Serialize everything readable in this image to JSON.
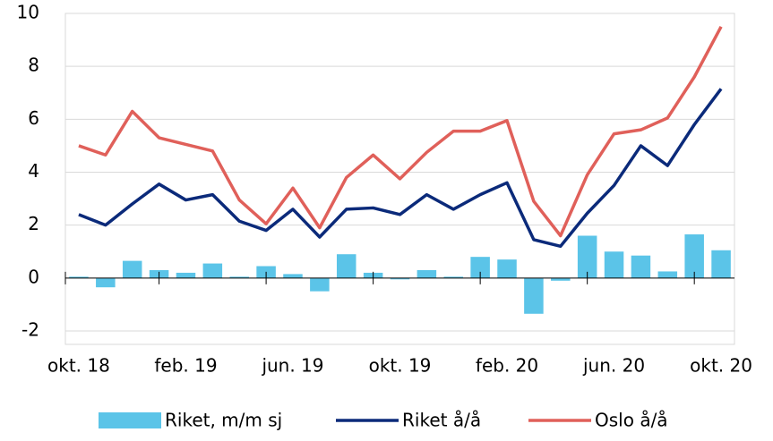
{
  "chart_data": {
    "type": "bar-line",
    "categories": [
      "okt. 18",
      null,
      null,
      null,
      "feb. 19",
      null,
      null,
      null,
      "jun. 19",
      null,
      null,
      null,
      "okt. 19",
      null,
      null,
      null,
      "feb. 20",
      null,
      null,
      null,
      "jun. 20",
      null,
      null,
      null,
      "okt. 20"
    ],
    "series": [
      {
        "name": "Riket, m/m sj",
        "type": "bar",
        "color": "#5bc4e8",
        "values": [
          0.05,
          -0.35,
          0.65,
          0.3,
          0.2,
          0.55,
          0.05,
          0.45,
          0.15,
          -0.5,
          0.9,
          0.2,
          -0.05,
          0.3,
          0.05,
          0.8,
          0.7,
          -1.35,
          -0.1,
          1.6,
          1.0,
          0.85,
          0.25,
          1.65,
          1.05
        ]
      },
      {
        "name": "Riket å/å",
        "type": "line",
        "color": "#0b2a7a",
        "values": [
          2.4,
          2.0,
          2.8,
          3.55,
          2.95,
          3.15,
          2.15,
          1.8,
          2.6,
          1.55,
          2.6,
          2.65,
          2.4,
          3.15,
          2.6,
          3.15,
          3.6,
          1.45,
          1.2,
          2.45,
          3.5,
          5.0,
          4.25,
          5.8,
          7.15
        ]
      },
      {
        "name": "Oslo å/å",
        "type": "line",
        "color": "#e0605a",
        "values": [
          5.0,
          4.65,
          6.3,
          5.3,
          5.05,
          4.8,
          2.95,
          2.05,
          3.4,
          1.9,
          3.8,
          4.65,
          3.75,
          4.75,
          5.55,
          5.55,
          5.95,
          2.9,
          1.6,
          3.9,
          5.45,
          5.6,
          6.05,
          7.6,
          9.5
        ]
      }
    ],
    "ylim": [
      -2,
      10
    ],
    "yticks": [
      -2,
      0,
      2,
      4,
      6,
      8,
      10
    ],
    "grid": true,
    "legend": "bottom"
  }
}
